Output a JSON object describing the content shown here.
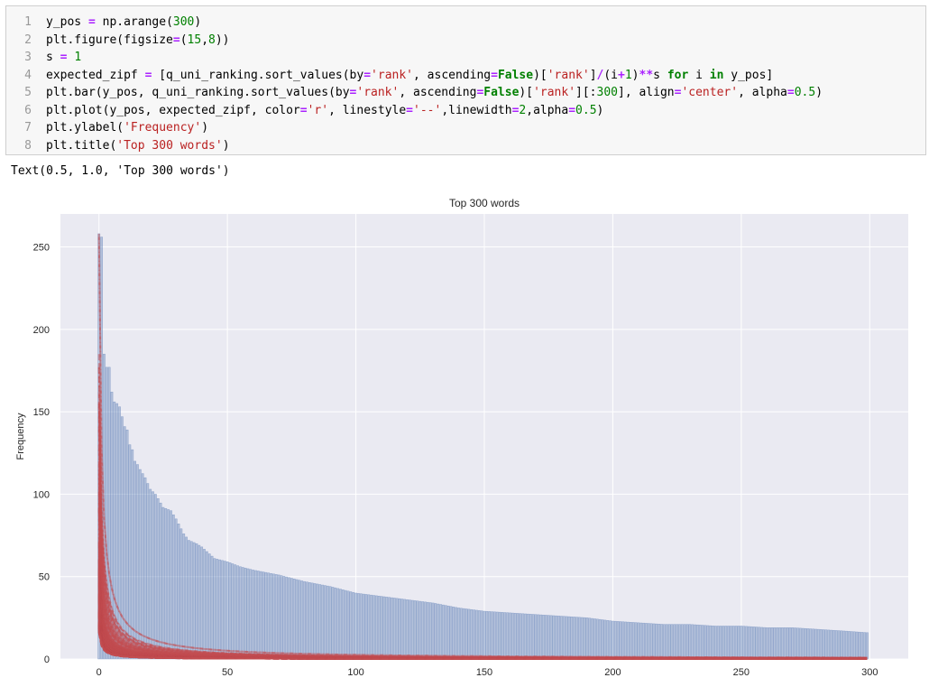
{
  "code_cell": {
    "lines": [
      {
        "n": "1",
        "tokens": [
          [
            "src",
            "y_pos "
          ],
          [
            "op",
            "="
          ],
          [
            "src",
            " np.arange("
          ],
          [
            "num",
            "300"
          ],
          [
            "src",
            ")"
          ]
        ]
      },
      {
        "n": "2",
        "tokens": [
          [
            "src",
            "plt.figure(figsize"
          ],
          [
            "op",
            "="
          ],
          [
            "src",
            "("
          ],
          [
            "num",
            "15"
          ],
          [
            "src",
            ","
          ],
          [
            "num",
            "8"
          ],
          [
            "src",
            "))"
          ]
        ]
      },
      {
        "n": "3",
        "tokens": [
          [
            "src",
            "s "
          ],
          [
            "op",
            "="
          ],
          [
            "src",
            " "
          ],
          [
            "num",
            "1"
          ]
        ]
      },
      {
        "n": "4",
        "tokens": [
          [
            "src",
            "expected_zipf "
          ],
          [
            "op",
            "="
          ],
          [
            "src",
            " [q_uni_ranking.sort_values(by"
          ],
          [
            "op",
            "="
          ],
          [
            "str",
            "'rank'"
          ],
          [
            "src",
            ", ascending"
          ],
          [
            "op",
            "="
          ],
          [
            "kw",
            "False"
          ],
          [
            "src",
            ")["
          ],
          [
            "str",
            "'rank'"
          ],
          [
            "src",
            "]"
          ],
          [
            "op",
            "/"
          ],
          [
            "src",
            "(i"
          ],
          [
            "op",
            "+"
          ],
          [
            "num",
            "1"
          ],
          [
            "src",
            ")"
          ],
          [
            "op",
            "**"
          ],
          [
            "src",
            "s "
          ],
          [
            "kw",
            "for"
          ],
          [
            "src",
            " i "
          ],
          [
            "kw",
            "in"
          ],
          [
            "src",
            " y_pos]"
          ]
        ]
      },
      {
        "n": "5",
        "tokens": [
          [
            "src",
            "plt.bar(y_pos, q_uni_ranking.sort_values(by"
          ],
          [
            "op",
            "="
          ],
          [
            "str",
            "'rank'"
          ],
          [
            "src",
            ", ascending"
          ],
          [
            "op",
            "="
          ],
          [
            "kw",
            "False"
          ],
          [
            "src",
            ")["
          ],
          [
            "str",
            "'rank'"
          ],
          [
            "src",
            "][:"
          ],
          [
            "num",
            "300"
          ],
          [
            "src",
            "], align"
          ],
          [
            "op",
            "="
          ],
          [
            "str",
            "'center'"
          ],
          [
            "src",
            ", alpha"
          ],
          [
            "op",
            "="
          ],
          [
            "num",
            "0.5"
          ],
          [
            "src",
            ")"
          ]
        ]
      },
      {
        "n": "6",
        "tokens": [
          [
            "src",
            "plt.plot(y_pos, expected_zipf, color"
          ],
          [
            "op",
            "="
          ],
          [
            "str",
            "'r'"
          ],
          [
            "src",
            ", linestyle"
          ],
          [
            "op",
            "="
          ],
          [
            "str",
            "'--'"
          ],
          [
            "src",
            ",linewidth"
          ],
          [
            "op",
            "="
          ],
          [
            "num",
            "2"
          ],
          [
            "src",
            ",alpha"
          ],
          [
            "op",
            "="
          ],
          [
            "num",
            "0.5"
          ],
          [
            "src",
            ")"
          ]
        ]
      },
      {
        "n": "7",
        "tokens": [
          [
            "src",
            "plt.ylabel("
          ],
          [
            "str",
            "'Frequency'"
          ],
          [
            "src",
            ")"
          ]
        ]
      },
      {
        "n": "8",
        "tokens": [
          [
            "src",
            "plt.title("
          ],
          [
            "str",
            "'Top 300 words'"
          ],
          [
            "src",
            ")"
          ]
        ]
      }
    ]
  },
  "output": {
    "text": "Text(0.5, 1.0, 'Top 300 words')"
  },
  "chart_data": {
    "type": "bar",
    "title": "Top 300 words",
    "xlabel": "",
    "ylabel": "Frequency",
    "xlim": [
      -15,
      315
    ],
    "ylim": [
      0,
      270
    ],
    "xticks": [
      0,
      50,
      100,
      150,
      200,
      250,
      300
    ],
    "yticks": [
      0,
      50,
      100,
      150,
      200,
      250
    ],
    "grid": true,
    "bar_color": "#4c72b0",
    "line_color": "#c44e52",
    "anchors": [
      [
        0,
        258
      ],
      [
        1,
        256
      ],
      [
        2,
        185
      ],
      [
        3,
        177
      ],
      [
        4,
        177
      ],
      [
        5,
        162
      ],
      [
        6,
        156
      ],
      [
        7,
        155
      ],
      [
        8,
        153
      ],
      [
        9,
        147
      ],
      [
        10,
        141
      ],
      [
        11,
        139
      ],
      [
        12,
        130
      ],
      [
        13,
        127
      ],
      [
        14,
        120
      ],
      [
        15,
        118
      ],
      [
        16,
        115
      ],
      [
        18,
        110
      ],
      [
        20,
        103
      ],
      [
        22,
        100
      ],
      [
        25,
        92
      ],
      [
        28,
        90
      ],
      [
        30,
        85
      ],
      [
        33,
        76
      ],
      [
        35,
        72
      ],
      [
        38,
        70
      ],
      [
        40,
        68
      ],
      [
        45,
        61
      ],
      [
        50,
        59
      ],
      [
        55,
        56
      ],
      [
        60,
        54
      ],
      [
        70,
        51
      ],
      [
        80,
        47
      ],
      [
        90,
        44
      ],
      [
        100,
        40
      ],
      [
        110,
        38
      ],
      [
        120,
        36
      ],
      [
        130,
        34
      ],
      [
        140,
        31
      ],
      [
        150,
        29
      ],
      [
        160,
        28
      ],
      [
        170,
        27
      ],
      [
        180,
        26
      ],
      [
        190,
        25
      ],
      [
        200,
        23
      ],
      [
        210,
        22
      ],
      [
        220,
        21
      ],
      [
        230,
        21
      ],
      [
        240,
        20
      ],
      [
        250,
        20
      ],
      [
        260,
        19
      ],
      [
        270,
        19
      ],
      [
        280,
        18
      ],
      [
        290,
        17
      ],
      [
        299,
        16
      ]
    ],
    "values_note": "bar heights for all 300 ranks interpolated from anchors"
  }
}
